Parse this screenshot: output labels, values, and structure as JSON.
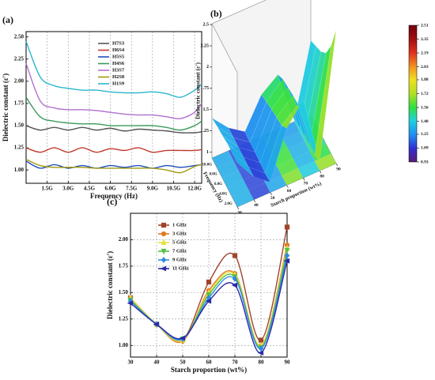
{
  "chart_data": [
    {
      "type": "line",
      "label": "(a)",
      "x_label": "Frequency (Hz)",
      "y_label": "Dielectric constant (ε')",
      "x": [
        0,
        1,
        2,
        3,
        4,
        5,
        6,
        7,
        8,
        9,
        10,
        11,
        12,
        12.5
      ],
      "xlim": [
        0,
        12.5
      ],
      "ylim": [
        0.85,
        2.56
      ],
      "xticks": [
        {
          "value": 1.5,
          "label": "1.5G"
        },
        {
          "value": 3,
          "label": "3.0G"
        },
        {
          "value": 4.5,
          "label": "4.5G"
        },
        {
          "value": 6,
          "label": "6.0G"
        },
        {
          "value": 7.5,
          "label": "7.5G"
        },
        {
          "value": 9,
          "label": "9.0G"
        },
        {
          "value": 10.5,
          "label": "10.5G"
        },
        {
          "value": 12,
          "label": "12.0G"
        }
      ],
      "yticks": [
        {
          "value": 1,
          "label": "1.00"
        },
        1.25,
        {
          "value": 1.5,
          "label": "1.50"
        },
        1.75,
        {
          "value": 2,
          "label": "2.00"
        },
        2.25,
        {
          "value": 2.5,
          "label": "2.50"
        }
      ],
      "grid": [
        "x"
      ],
      "legend": "upper center",
      "series": [
        {
          "name": "H7S3",
          "color": "#555555",
          "values": [
            1.5,
            1.45,
            1.48,
            1.45,
            1.48,
            1.45,
            1.47,
            1.44,
            1.46,
            1.45,
            1.44,
            1.42,
            1.42,
            1.43
          ]
        },
        {
          "name": "H6S4",
          "color": "#c0392b",
          "values": [
            1.25,
            1.2,
            1.25,
            1.2,
            1.25,
            1.2,
            1.24,
            1.22,
            1.25,
            1.2,
            1.22,
            1.22,
            1.22,
            1.23
          ]
        },
        {
          "name": "H5S5",
          "color": "#1f4fbf",
          "values": [
            1.1,
            1.02,
            1.06,
            1.02,
            1.05,
            1.02,
            1.05,
            1.03,
            1.05,
            1.02,
            1.05,
            1.03,
            1.05,
            1.06
          ]
        },
        {
          "name": "H4S6",
          "color": "#3a9a5b",
          "values": [
            1.82,
            1.6,
            1.55,
            1.53,
            1.52,
            1.52,
            1.5,
            1.5,
            1.5,
            1.5,
            1.48,
            1.45,
            1.5,
            1.55
          ]
        },
        {
          "name": "H3S7",
          "color": "#b070d0",
          "values": [
            2.2,
            1.78,
            1.7,
            1.68,
            1.68,
            1.67,
            1.65,
            1.63,
            1.62,
            1.62,
            1.6,
            1.58,
            1.65,
            1.75
          ]
        },
        {
          "name": "H2S8",
          "color": "#a09a10",
          "values": [
            1.12,
            1.05,
            1.03,
            1.03,
            1.03,
            1.02,
            1.02,
            1.02,
            1.02,
            1.02,
            1.0,
            0.97,
            1.04,
            1.06
          ]
        },
        {
          "name": "H1S9",
          "color": "#29b6cc",
          "values": [
            2.45,
            2.05,
            1.95,
            1.92,
            1.9,
            1.9,
            1.88,
            1.87,
            1.87,
            1.88,
            1.86,
            1.82,
            1.9,
            1.97
          ]
        }
      ]
    },
    {
      "type": "surface3d",
      "label": "(b)",
      "x_label": "Starch proportion (wt%)",
      "y_label": "Frequency (Hz)",
      "z_label": "Dielectric constant (ε')",
      "starch": [
        30,
        40,
        50,
        60,
        70,
        80,
        90
      ],
      "frequency": [
        1,
        3,
        5,
        7,
        9,
        11
      ],
      "xlim": [
        30,
        90
      ],
      "ylim": [
        1,
        11
      ],
      "zlim": [
        0.93,
        2.51
      ],
      "xticks": [
        30,
        40,
        50,
        60,
        70,
        80,
        90
      ],
      "yticks": [
        {
          "value": 2,
          "label": "2.0G"
        },
        {
          "value": 4,
          "label": "4.0G"
        },
        {
          "value": 6,
          "label": "6.0G"
        },
        {
          "value": 8,
          "label": "8.0G"
        },
        {
          "value": 10,
          "label": "10.0G"
        }
      ],
      "zticks": [
        1,
        1.25,
        1.5,
        1.75,
        2,
        2.25,
        2.5
      ],
      "z": [
        [
          1.45,
          1.2,
          1.05,
          1.6,
          1.85,
          1.05,
          2.5
        ],
        [
          1.45,
          1.2,
          1.04,
          1.52,
          1.68,
          1.0,
          2.2
        ],
        [
          1.45,
          1.2,
          1.05,
          1.5,
          1.67,
          1.0,
          2.0
        ],
        [
          1.43,
          1.2,
          1.06,
          1.48,
          1.65,
          0.98,
          1.9
        ],
        [
          1.42,
          1.2,
          1.06,
          1.45,
          1.63,
          0.97,
          1.85
        ],
        [
          1.4,
          1.2,
          1.07,
          1.42,
          1.57,
          0.95,
          1.8
        ]
      ],
      "colormap": [
        "#5b1a75",
        "#3030d0",
        "#2090f0",
        "#20d0e0",
        "#30e040",
        "#b0e020",
        "#f0e020",
        "#f09020",
        "#e03020",
        "#a01010",
        "#700010"
      ],
      "colorbar_ticks": [
        0.93,
        1.09,
        1.25,
        {
          "value": 1.4,
          "label": "1.40"
        },
        1.56,
        1.72,
        1.88,
        2.03,
        2.19,
        2.35,
        2.51
      ]
    },
    {
      "type": "line",
      "label": "(c)",
      "x_label": "Starch proportion (wt%)",
      "y_label": "Dielectric constant (ε')",
      "x": [
        30,
        40,
        50,
        60,
        70,
        80,
        90
      ],
      "xlim": [
        30,
        90
      ],
      "ylim": [
        0.89,
        2.25
      ],
      "xticks": [
        30,
        40,
        50,
        60,
        70,
        80,
        90
      ],
      "yticks": [
        {
          "value": 1,
          "label": "1.00"
        },
        1.25,
        {
          "value": 1.5,
          "label": "1.50"
        },
        1.75,
        {
          "value": 2,
          "label": "2.00"
        }
      ],
      "grid": [
        "x",
        "y"
      ],
      "legend": "upper left",
      "series": [
        {
          "name": "1 GHz",
          "color": "#a0442a",
          "marker": "square",
          "values": [
            1.45,
            1.2,
            1.05,
            1.6,
            1.85,
            1.05,
            2.12
          ]
        },
        {
          "name": "3 GHz",
          "color": "#e07a20",
          "marker": "circle",
          "values": [
            1.45,
            1.2,
            1.04,
            1.52,
            1.68,
            1.0,
            1.95
          ]
        },
        {
          "name": "5 GHz",
          "color": "#e8e040",
          "marker": "triangle-up",
          "values": [
            1.45,
            1.2,
            1.05,
            1.5,
            1.67,
            1.0,
            1.92
          ]
        },
        {
          "name": "7 GHz",
          "color": "#50c040",
          "marker": "triangle-down",
          "values": [
            1.43,
            1.2,
            1.06,
            1.48,
            1.65,
            0.98,
            1.9
          ]
        },
        {
          "name": "9 GHz",
          "color": "#2e8be0",
          "marker": "diamond",
          "values": [
            1.42,
            1.2,
            1.06,
            1.45,
            1.63,
            0.97,
            1.85
          ]
        },
        {
          "name": "11 GHz",
          "color": "#2a2aa8",
          "marker": "triangle-left",
          "values": [
            1.4,
            1.2,
            1.07,
            1.42,
            1.57,
            0.93,
            1.8
          ]
        }
      ]
    }
  ]
}
